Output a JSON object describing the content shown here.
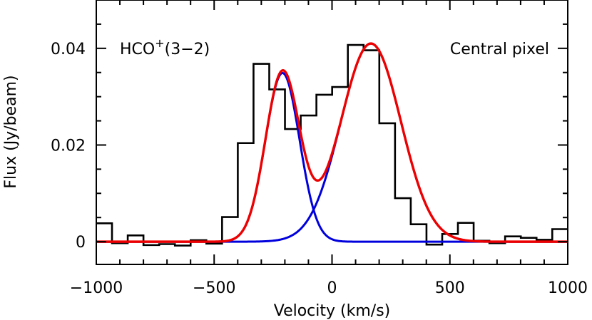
{
  "chart_data": {
    "type": "line",
    "xlabel": "Velocity (km/s)",
    "ylabel": "Flux (Jy/beam)",
    "xlim": [
      -1000,
      1000
    ],
    "ylim": [
      -0.0047,
      0.05
    ],
    "x_ticks": [
      -1000,
      -500,
      0,
      500,
      1000
    ],
    "x_tick_labels": [
      "−1000",
      "−500",
      "0",
      "500",
      "1000"
    ],
    "y_ticks": [
      0,
      0.02,
      0.04
    ],
    "y_tick_labels": [
      "0",
      "0.02",
      "0.04"
    ],
    "annotations": {
      "line_species": "HCO",
      "line_superscript": "+",
      "line_transition": "(3−2)",
      "location": "Central pixel"
    },
    "histogram": {
      "name": "observed spectrum",
      "color": "#000000",
      "bin_width": 66.7,
      "x_start": -1000,
      "values": [
        0.0038,
        -0.0003,
        0.0013,
        -0.0007,
        -0.0005,
        -0.0008,
        0.0003,
        -0.0004,
        0.0051,
        0.0204,
        0.0368,
        0.0315,
        0.0233,
        0.0261,
        0.0304,
        0.032,
        0.0407,
        0.0396,
        0.0245,
        0.009,
        0.0036,
        -0.0006,
        0.0016,
        0.0039,
        0.0002,
        -0.0003,
        0.0011,
        0.0008,
        0.0004,
        0.0026
      ]
    },
    "components": [
      {
        "name": "blue component",
        "color": "#0000dd",
        "center": -210,
        "amplitude": 0.0349,
        "fwhm": 170
      },
      {
        "name": "red component",
        "color": "#0000dd",
        "center": 165,
        "amplitude": 0.041,
        "fwhm": 300
      }
    ],
    "total_fit": {
      "name": "total fit",
      "color": "#ee0000"
    },
    "grid": false,
    "legend": "none"
  }
}
